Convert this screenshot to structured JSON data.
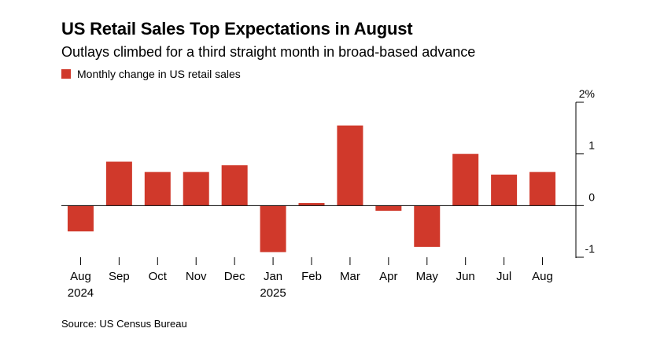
{
  "title": "US Retail Sales Top Expectations in August",
  "subtitle": "Outlays climbed for a third straight month in broad-based advance",
  "legend_label": "Monthly change in US retail sales",
  "source": "Source: US Census Bureau",
  "colors": {
    "bar": "#d0392b",
    "axis": "#000000"
  },
  "chart_data": {
    "type": "bar",
    "categories": [
      "Aug",
      "Sep",
      "Oct",
      "Nov",
      "Dec",
      "Jan",
      "Feb",
      "Mar",
      "Apr",
      "May",
      "Jun",
      "Jul",
      "Aug"
    ],
    "year_labels": [
      "2024",
      "",
      "",
      "",
      "",
      "2025",
      "",
      "",
      "",
      "",
      "",
      "",
      ""
    ],
    "series": [
      {
        "name": "Monthly change in US retail sales",
        "values": [
          -0.5,
          0.85,
          0.65,
          0.65,
          0.78,
          -0.9,
          0.05,
          1.55,
          -0.1,
          -0.8,
          1.0,
          0.6,
          0.65
        ]
      }
    ],
    "ylim": [
      -1,
      2
    ],
    "y_ticks": [
      -1,
      0,
      1,
      2
    ],
    "y_tick_labels": [
      "-1",
      "0",
      "1",
      "2%"
    ],
    "y_axis_position": "right",
    "grid": false,
    "legend_position": "top-left"
  }
}
